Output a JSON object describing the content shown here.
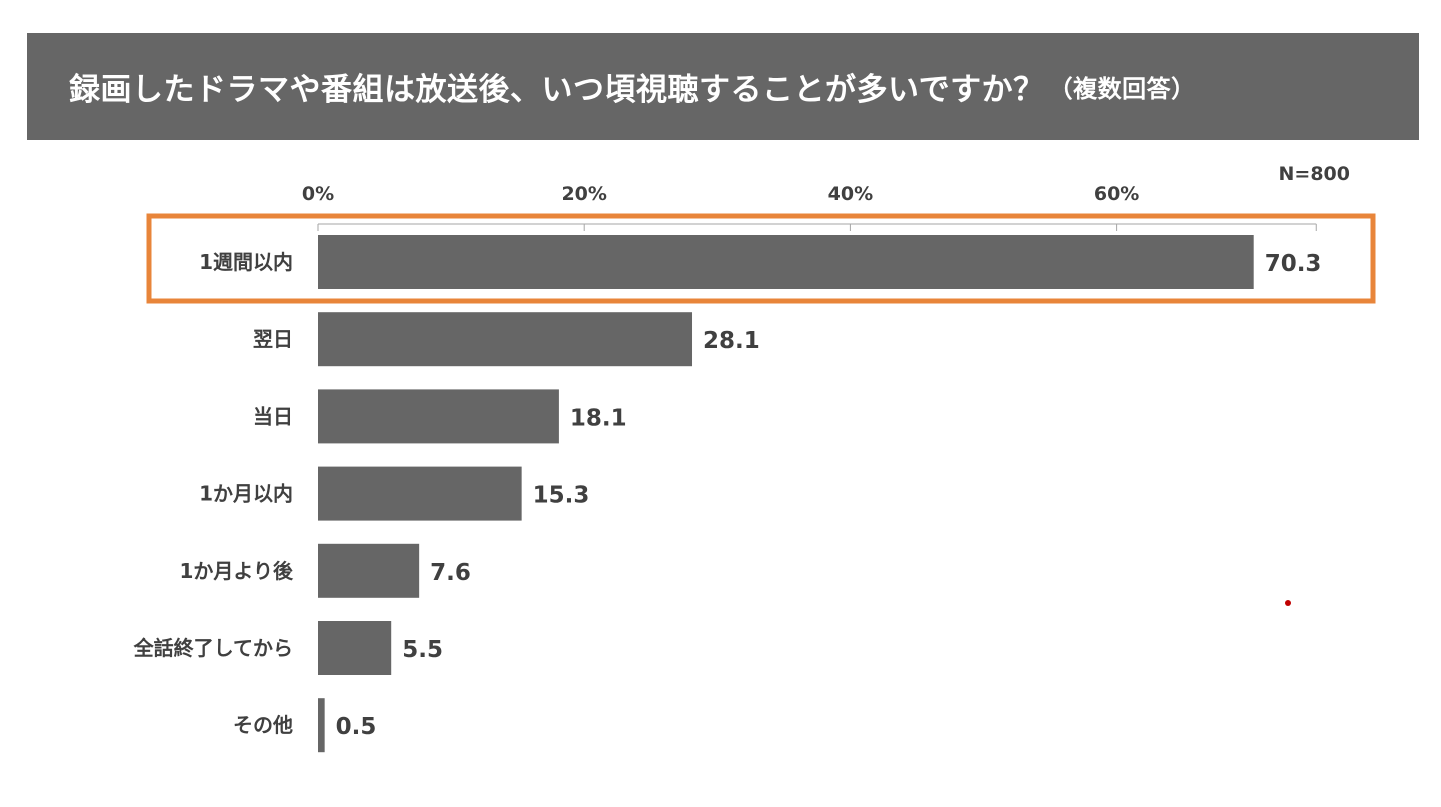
{
  "title": {
    "main": "録画したドラマや番組は放送後、いつ頃視聴することが多いですか？",
    "sub": "（複数回答）"
  },
  "sample_size": "N=800",
  "colors": {
    "banner": "#666666",
    "bar": "#666666",
    "highlight": "#E8853A",
    "text": "#404040",
    "axis": "#a6a6a6",
    "dot": "#c00000"
  },
  "chart_data": {
    "type": "bar",
    "orientation": "horizontal",
    "categories": [
      "1週間以内",
      "翌日",
      "当日",
      "1か月以内",
      "1か月より後",
      "全話終了してから",
      "その他"
    ],
    "values": [
      70.3,
      28.1,
      18.1,
      15.3,
      7.6,
      5.5,
      0.5
    ],
    "value_labels": [
      "70.3",
      "28.1",
      "18.1",
      "15.3",
      "7.6",
      "5.5",
      "0.5"
    ],
    "x_ticks": [
      0,
      20,
      40,
      60
    ],
    "x_tick_labels": [
      "0%",
      "20%",
      "40%",
      "60%"
    ],
    "xlim": [
      0,
      75
    ],
    "axis_position": "top",
    "grid": false,
    "highlighted_category": "1週間以内"
  }
}
